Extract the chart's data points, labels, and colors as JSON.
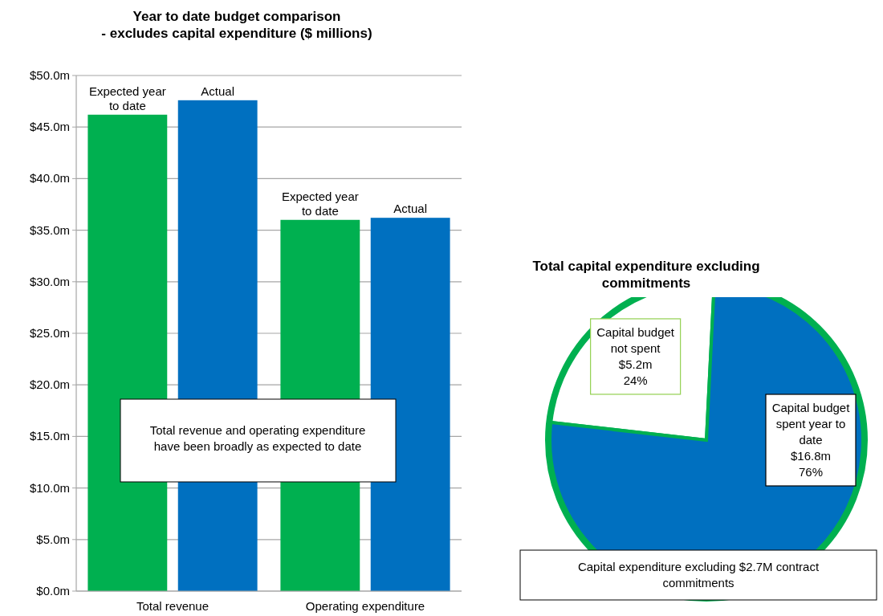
{
  "chart_data": [
    {
      "type": "bar",
      "title": "Year to date budget comparison - excludes capital expenditure ($ millions)",
      "categories": [
        "Total revenue",
        "Operating expenditure"
      ],
      "series": [
        {
          "name": "Expected year to date",
          "color": "#00b050",
          "values": [
            46.2,
            36.0
          ]
        },
        {
          "name": "Actual",
          "color": "#0070c0",
          "values": [
            47.6,
            36.2
          ]
        }
      ],
      "ylim": [
        0,
        50
      ],
      "yticks": [
        {
          "value": 0,
          "label": "$0.0m"
        },
        {
          "value": 5,
          "label": "$5.0m"
        },
        {
          "value": 10,
          "label": "$10.0m"
        },
        {
          "value": 15,
          "label": "$15.0m"
        },
        {
          "value": 20,
          "label": "$20.0m"
        },
        {
          "value": 25,
          "label": "$25.0m"
        },
        {
          "value": 30,
          "label": "$30.0m"
        },
        {
          "value": 35,
          "label": "$35.0m"
        },
        {
          "value": 40,
          "label": "$40.0m"
        },
        {
          "value": 45,
          "label": "$45.0m"
        },
        {
          "value": 50,
          "label": "$50.0m"
        }
      ],
      "grid": "y",
      "legend": false,
      "annotations": [
        "Total revenue and operating expenditure have been broadly as expected to date"
      ]
    },
    {
      "type": "pie",
      "title": "Total capital expenditure excluding commitments",
      "categories": [
        "Capital budget not spent $5.2m",
        "Capital budget spent year to date $16.8m"
      ],
      "values": [
        24,
        76
      ],
      "colors": [
        "#ffffff",
        "#0070c0"
      ],
      "value_labels": [
        "24%",
        "76%"
      ],
      "legend": false,
      "annotations": [
        "Capital expenditure excluding $2.7M contract commitments"
      ]
    }
  ]
}
